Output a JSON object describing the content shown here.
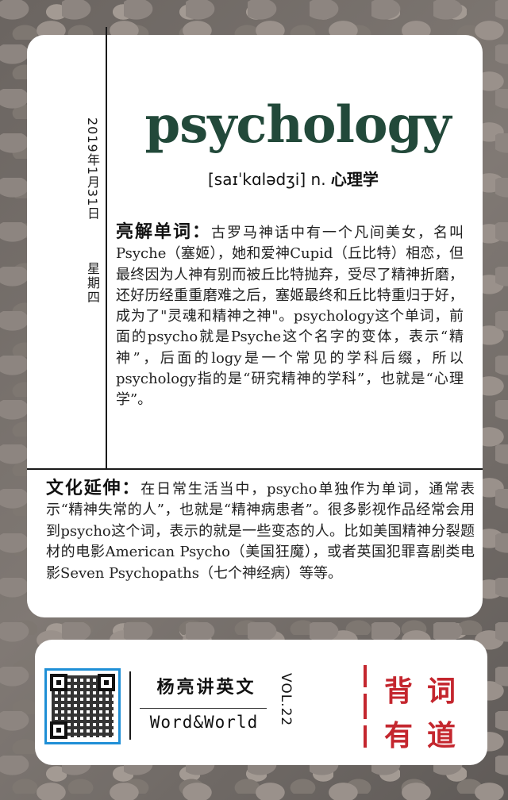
{
  "card": {
    "date": "2019年1月31日",
    "weekday": "星期四",
    "word": "psychology",
    "phonetic": "[saɪˈkɑlədʒi] n.",
    "meaning": "心理学",
    "section1": {
      "label": "亮解单词：",
      "text": "古罗马神话中有一个凡间美女，名叫Psyche（塞姬），她和爱神Cupid（丘比特）相恋，但最终因为人神有别而被丘比特抛弃，受尽了精神折磨，还好历经重重磨难之后，塞姬最终和丘比特重归于好，成为了\"灵魂和精神之神\"。psychology这个单词，前面的psycho就是Psyche这个名字的变体，表示“精神”，后面的logy是一个常见的学科后缀，所以psychology指的是“研究精神的学科”，也就是“心理学”。"
    },
    "section2": {
      "label": "文化延伸：",
      "text": "在日常生活当中，psycho单独作为单词，通常表示“精神失常的人”，也就是“精神病患者”。很多影视作品经常会用到psycho这个词，表示的就是一些变态的人。比如美国精神分裂题材的电影American Psycho（美国狂魔），或者英国犯罪喜剧类电影Seven Psychopaths（七个神经病）等等。"
    }
  },
  "footer": {
    "qr_icon": "qr-code",
    "brand_cn": "杨亮讲英文",
    "brand_en": "Word&World",
    "volume": "VOL.22",
    "slogan": [
      "背",
      "词",
      "有",
      "道"
    ],
    "accent_color": "#c4262e"
  }
}
